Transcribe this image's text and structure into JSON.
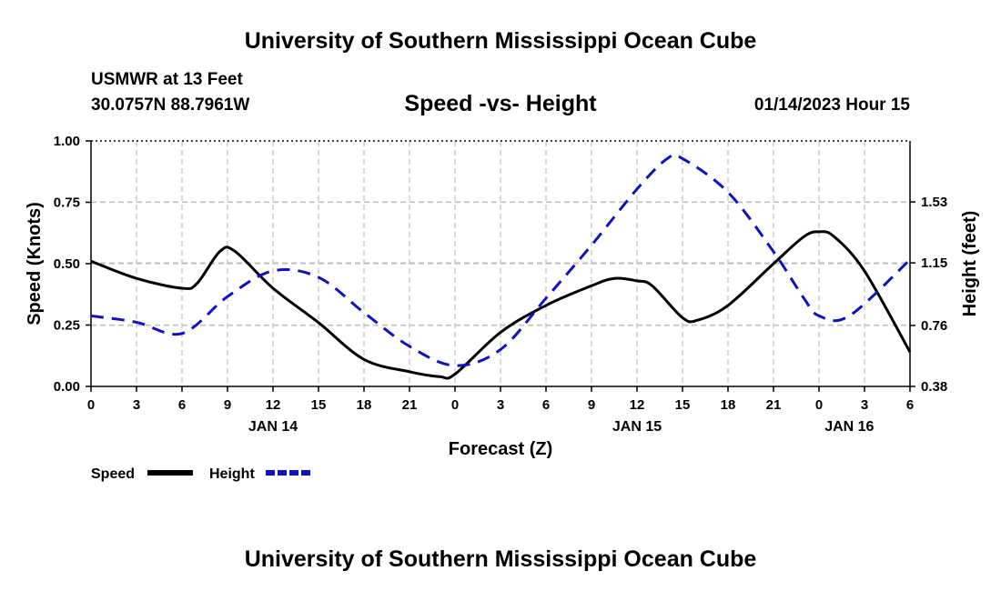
{
  "header": {
    "title": "University of Southern Mississippi Ocean Cube",
    "station": "USMWR at 13 Feet",
    "coords": "30.0757N  88.7961W",
    "timestamp": "01/14/2023 Hour 15"
  },
  "footer": {
    "title": "University of Southern Mississippi Ocean Cube"
  },
  "chart_data": {
    "type": "line",
    "title": "Speed -vs- Height",
    "xlabel": "Forecast (Z)",
    "ylabel": "Speed (Knots)",
    "y2label": "Height (feet)",
    "x": [
      0,
      3,
      6,
      9,
      12,
      15,
      18,
      21,
      24,
      27,
      30,
      33,
      36,
      39,
      42,
      45,
      48,
      51,
      54
    ],
    "x_tick_labels": [
      "0",
      "3",
      "6",
      "9",
      "12",
      "15",
      "18",
      "21",
      "0",
      "3",
      "6",
      "9",
      "12",
      "15",
      "18",
      "21",
      "0",
      "3",
      "6"
    ],
    "day_labels": [
      {
        "label": "JAN 14",
        "x": 12
      },
      {
        "label": "JAN 15",
        "x": 36
      },
      {
        "label": "JAN 16",
        "x": 50
      }
    ],
    "xlim": [
      0,
      54
    ],
    "ylim": [
      0,
      1.0
    ],
    "y_ticks": [
      0,
      0.25,
      0.5,
      0.75,
      1.0
    ],
    "y_tick_labels": [
      "0.00",
      "0.25",
      "0.50",
      "0.75",
      "1.00"
    ],
    "y2lim": [
      0.38,
      1.91
    ],
    "y2_ticks": [
      0.38,
      0.76,
      1.15,
      1.53
    ],
    "y2_tick_labels": [
      "0.38",
      "0.76",
      "1.15",
      "1.53"
    ],
    "grid": true,
    "legend_position": "bottom-left",
    "colors": {
      "speed": "#000000",
      "height": "#1010c8",
      "grid": "#c0c0c0"
    },
    "series": [
      {
        "name": "Speed",
        "axis": "left",
        "style": "solid",
        "points": [
          [
            0,
            0.51
          ],
          [
            3,
            0.44
          ],
          [
            6,
            0.4
          ],
          [
            7,
            0.42
          ],
          [
            8.5,
            0.55
          ],
          [
            9.5,
            0.55
          ],
          [
            12,
            0.4
          ],
          [
            15,
            0.26
          ],
          [
            18,
            0.11
          ],
          [
            21,
            0.06
          ],
          [
            23,
            0.04
          ],
          [
            24,
            0.05
          ],
          [
            27,
            0.22
          ],
          [
            30,
            0.33
          ],
          [
            33,
            0.41
          ],
          [
            34.5,
            0.44
          ],
          [
            36,
            0.43
          ],
          [
            37,
            0.41
          ],
          [
            39,
            0.28
          ],
          [
            40,
            0.27
          ],
          [
            42,
            0.33
          ],
          [
            45,
            0.5
          ],
          [
            47,
            0.61
          ],
          [
            48,
            0.63
          ],
          [
            49,
            0.61
          ],
          [
            51,
            0.47
          ],
          [
            54,
            0.14
          ]
        ]
      },
      {
        "name": "Height",
        "axis": "right",
        "style": "dashed",
        "points": [
          [
            0,
            0.82
          ],
          [
            3,
            0.78
          ],
          [
            6,
            0.71
          ],
          [
            9,
            0.94
          ],
          [
            12,
            1.1
          ],
          [
            15,
            1.06
          ],
          [
            18,
            0.84
          ],
          [
            21,
            0.63
          ],
          [
            24,
            0.51
          ],
          [
            27,
            0.61
          ],
          [
            30,
            0.93
          ],
          [
            33,
            1.26
          ],
          [
            36,
            1.61
          ],
          [
            38,
            1.8
          ],
          [
            39,
            1.8
          ],
          [
            42,
            1.59
          ],
          [
            45,
            1.22
          ],
          [
            47,
            0.93
          ],
          [
            48,
            0.82
          ],
          [
            50,
            0.82
          ],
          [
            54,
            1.17
          ]
        ]
      }
    ]
  }
}
